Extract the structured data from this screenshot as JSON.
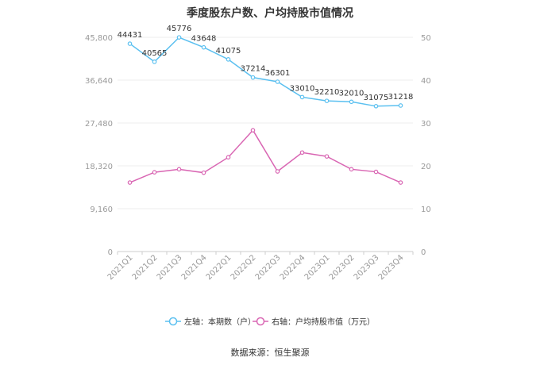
{
  "chart_data": {
    "type": "line",
    "title": "季度股东户数、户均持股市值情况",
    "categories": [
      "2021Q1",
      "2021Q2",
      "2021Q3",
      "2021Q4",
      "2022Q1",
      "2022Q2",
      "2022Q3",
      "2022Q4",
      "2023Q1",
      "2023Q2",
      "2023Q3",
      "2023Q4"
    ],
    "left_axis": {
      "ticks": [
        "0",
        "9,160",
        "18,320",
        "27,480",
        "36,640",
        "45,800"
      ],
      "ylim": [
        0,
        45800
      ]
    },
    "right_axis": {
      "ticks": [
        "0",
        "10",
        "20",
        "30",
        "40",
        "50"
      ],
      "ylim": [
        0,
        50
      ]
    },
    "series": [
      {
        "name": "左轴：本期数（户）",
        "axis": "left",
        "color": "#5bc0f0",
        "values": [
          44431,
          40565,
          45776,
          43648,
          41075,
          37214,
          36301,
          33010,
          32210,
          32010,
          31075,
          31218
        ],
        "labels": [
          "44431",
          "40565",
          "45776",
          "43648",
          "41075",
          "37214",
          "36301",
          "33010",
          "32210",
          "32010",
          "31075",
          "31218"
        ]
      },
      {
        "name": "右轴：户均持股市值（万元）",
        "axis": "right",
        "color": "#d966b3",
        "values": [
          16.1,
          18.5,
          19.2,
          18.4,
          22.0,
          28.3,
          18.7,
          23.1,
          22.2,
          19.2,
          18.6,
          16.1
        ]
      }
    ],
    "grid": true,
    "legend_position": "bottom"
  },
  "source": "数据来源：恒生聚源"
}
